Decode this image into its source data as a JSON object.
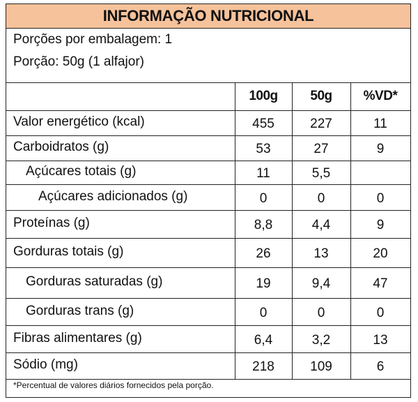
{
  "title": "INFORMAÇÃO NUTRICIONAL",
  "servings": {
    "per_package": "Porções por embalagem: 1",
    "portion": "Porção: 50g (1 alfajor)"
  },
  "headers": [
    "100g",
    "50g",
    "%VD*"
  ],
  "rows": [
    {
      "label": "Valor energético (kcal)",
      "v100": "455",
      "v50": "227",
      "vd": "11"
    },
    {
      "label": "Carboidratos (g)",
      "v100": "53",
      "v50": "27",
      "vd": "9"
    },
    {
      "label": "Açúcares totais (g)",
      "v100": "11",
      "v50": "5,5",
      "vd": ""
    },
    {
      "label": "Açúcares adicionados (g)",
      "v100": "0",
      "v50": "0",
      "vd": "0"
    },
    {
      "label": "Proteínas (g)",
      "v100": "8,8",
      "v50": "4,4",
      "vd": "9"
    },
    {
      "label": "Gorduras totais (g)",
      "v100": "26",
      "v50": "13",
      "vd": "20"
    },
    {
      "label": "Gorduras saturadas (g)",
      "v100": "19",
      "v50": "9,4",
      "vd": "47"
    },
    {
      "label": "Gorduras trans (g)",
      "v100": "0",
      "v50": "0",
      "vd": "0"
    },
    {
      "label": "Fibras alimentares (g)",
      "v100": "6,4",
      "v50": "3,2",
      "vd": "13"
    },
    {
      "label": "Sódio (mg)",
      "v100": "218",
      "v50": "109",
      "vd": "6"
    }
  ],
  "footnote": "*Percentual de valores diários fornecidos pela porção.",
  "colors": {
    "title_background": "#f6c29b",
    "border": "#222222"
  }
}
